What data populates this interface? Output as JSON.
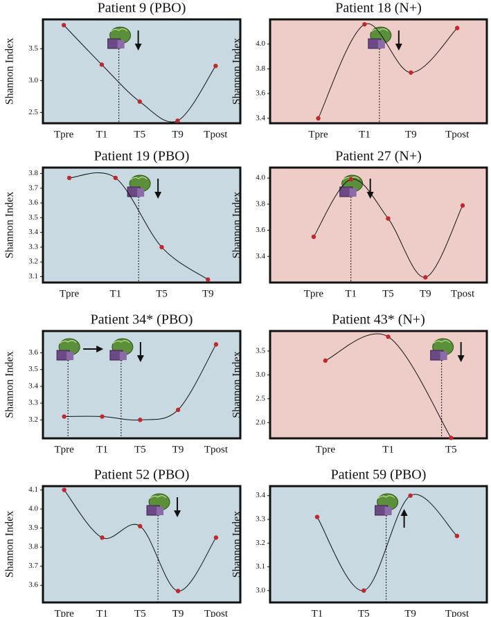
{
  "chart_data": [
    {
      "type": "line",
      "title": "Patient 9 (PBO)",
      "ylabel": "Shannon Index",
      "background": "#c9d9e1",
      "color": "#c0282b",
      "categories": [
        "Tpre",
        "T1",
        "T5",
        "T9",
        "Tpost"
      ],
      "x": [
        0,
        1,
        2,
        3,
        4
      ],
      "values": [
        3.87,
        3.25,
        2.67,
        2.37,
        3.23
      ],
      "xlim": [
        -0.55,
        4.65
      ],
      "ylim": [
        2.33,
        3.96
      ],
      "yticks": [
        2.5,
        {
          "value": 3,
          "label": "3.0"
        },
        3.5
      ],
      "markers": [
        {
          "x": 1.45,
          "arrow": "down"
        }
      ]
    },
    {
      "type": "line",
      "title": "Patient 18 (N+)",
      "ylabel": "Shannon Index",
      "background": "#eecdc9",
      "color": "#c0282b",
      "categories": [
        "Tpre",
        "T1",
        "T9",
        "Tpost"
      ],
      "x": [
        0,
        1,
        2,
        3
      ],
      "values": [
        3.4,
        4.16,
        3.77,
        4.13
      ],
      "xlim": [
        -1.04,
        3.64
      ],
      "ylim": [
        3.36,
        4.2
      ],
      "yticks": [
        3.4,
        3.6,
        3.8,
        {
          "value": 4,
          "label": "4.0"
        }
      ],
      "markers": [
        {
          "x": 1.32,
          "arrow": "down"
        }
      ]
    },
    {
      "type": "line",
      "title": "Patient 19 (PBO)",
      "ylabel": "Shannon Index",
      "background": "#c9d9e1",
      "color": "#c0282b",
      "categories": [
        "Tpre",
        "T1",
        "T5",
        "T9"
      ],
      "x": [
        0,
        1,
        2,
        3
      ],
      "values": [
        3.77,
        3.77,
        3.3,
        3.08
      ],
      "xlim": [
        -0.57,
        3.7
      ],
      "ylim": [
        3.06,
        3.84
      ],
      "yticks": [
        3.1,
        3.2,
        3.3,
        3.4,
        3.5,
        3.6,
        3.7,
        3.8
      ],
      "markers": [
        {
          "x": 1.5,
          "arrow": "down"
        }
      ]
    },
    {
      "type": "line",
      "title": "Patient 27 (N+)",
      "ylabel": "Shannon Index",
      "background": "#eecdc9",
      "color": "#c0282b",
      "categories": [
        "Tpre",
        "T1",
        "T5",
        "T9",
        "Tpost"
      ],
      "x": [
        0,
        1,
        2,
        3,
        4
      ],
      "values": [
        3.55,
        3.99,
        3.69,
        3.24,
        3.79
      ],
      "xlim": [
        -1.17,
        4.65
      ],
      "ylim": [
        3.2,
        4.08
      ],
      "yticks": [
        3.4,
        3.6,
        3.8,
        {
          "value": 4,
          "label": "4.0"
        }
      ],
      "markers": [
        {
          "x": 1,
          "arrow": "down"
        }
      ]
    },
    {
      "type": "line",
      "title": "Patient 34* (PBO)",
      "ylabel": "Shannon Index",
      "background": "#c9d9e1",
      "color": "#c0282b",
      "categories": [
        "Tpre",
        "T1",
        "T5",
        "T9",
        "Tpost"
      ],
      "x": [
        0,
        1,
        2,
        3,
        4
      ],
      "values": [
        3.22,
        3.22,
        3.2,
        3.26,
        3.65
      ],
      "xlim": [
        -0.56,
        4.64
      ],
      "ylim": [
        3.09,
        3.73
      ],
      "yticks": [
        3.2,
        3.3,
        3.4,
        3.5,
        3.6
      ],
      "markers": [
        {
          "x": 0.1,
          "arrow": "right"
        },
        {
          "x": 1.5,
          "arrow": "down"
        }
      ]
    },
    {
      "type": "line",
      "title": "Patient 43* (N+)",
      "ylabel": "Shannon Index",
      "background": "#eecdc9",
      "color": "#c0282b",
      "categories": [
        "Tpre",
        "T1",
        "T5"
      ],
      "x": [
        0,
        1,
        2
      ],
      "values": [
        3.3,
        3.8,
        1.68
      ],
      "xlim": [
        -0.88,
        2.57
      ],
      "ylim": [
        1.67,
        3.92
      ],
      "yticks": [
        {
          "value": 2,
          "label": "2.0"
        },
        2.5,
        {
          "value": 3,
          "label": "3.0"
        },
        3.5
      ],
      "markers": [
        {
          "x": 1.85,
          "arrow": "down"
        }
      ]
    },
    {
      "type": "line",
      "title": "Patient 52 (PBO)",
      "ylabel": "Shannon Index",
      "background": "#c9d9e1",
      "color": "#c0282b",
      "categories": [
        "Tpre",
        "T1",
        "T5",
        "T9",
        "Tpost"
      ],
      "x": [
        0,
        1,
        2,
        3,
        4
      ],
      "values": [
        4.1,
        3.85,
        3.91,
        3.57,
        3.85
      ],
      "xlim": [
        -0.56,
        4.64
      ],
      "ylim": [
        3.51,
        4.12
      ],
      "yticks": [
        3.6,
        3.7,
        3.8,
        3.9,
        {
          "value": 4,
          "label": "4.0"
        },
        4.1
      ],
      "markers": [
        {
          "x": 2.47,
          "arrow": "down"
        }
      ]
    },
    {
      "type": "line",
      "title": "Patient 59 (PBO)",
      "ylabel": "Shannon Index",
      "background": "#c9d9e1",
      "color": "#c0282b",
      "categories": [
        "T1",
        "T5",
        "T9",
        "Tpost"
      ],
      "x": [
        0,
        1,
        2,
        3
      ],
      "values": [
        3.31,
        3.0,
        3.4,
        3.23
      ],
      "xlim": [
        -1.01,
        3.64
      ],
      "ylim": [
        2.95,
        3.44
      ],
      "yticks": [
        {
          "value": 3,
          "label": "3.0"
        },
        3.1,
        3.2,
        3.3,
        3.4
      ],
      "markers": [
        {
          "x": 1.48,
          "arrow": "up"
        }
      ]
    }
  ]
}
